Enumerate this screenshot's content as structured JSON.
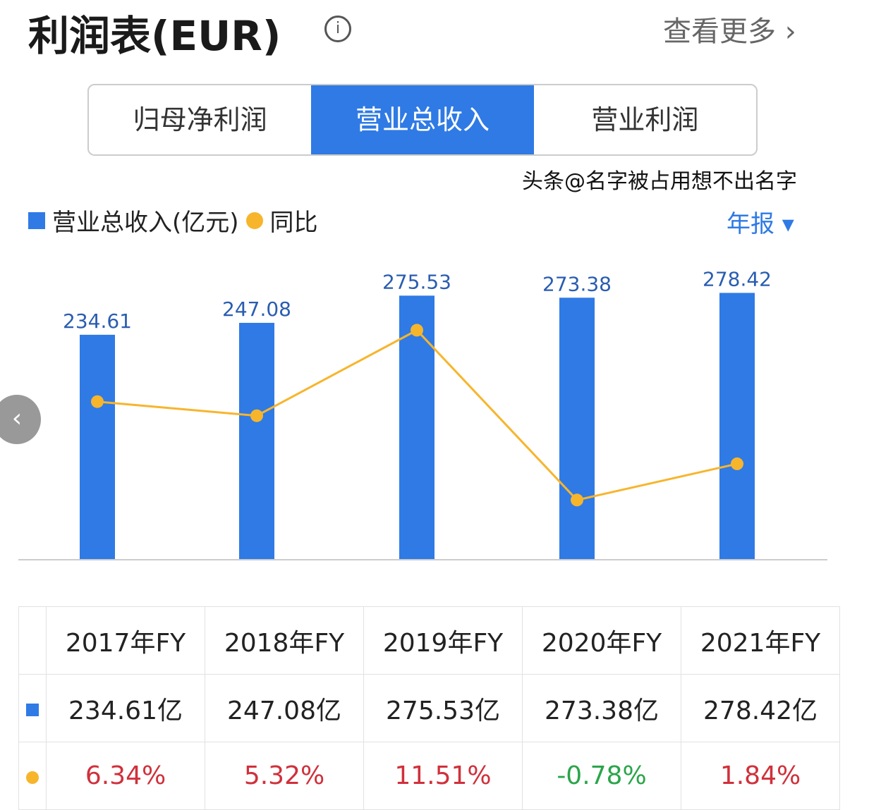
{
  "header": {
    "title": "利润表(EUR)",
    "more": "查看更多 ›"
  },
  "tabs": [
    {
      "label": "归母净利润",
      "active": false
    },
    {
      "label": "营业总收入",
      "active": true
    },
    {
      "label": "营业利润",
      "active": false
    }
  ],
  "legend": {
    "bar": "营业总收入(亿元)",
    "line": "同比"
  },
  "period": "年报 ▾",
  "colors": {
    "bar": "#2f7ae5",
    "line": "#f7b52c",
    "positive": "#d0303b",
    "negative": "#2aa54a"
  },
  "chart_data": {
    "type": "bar+line",
    "categories": [
      "2017年FY",
      "2018年FY",
      "2019年FY",
      "2020年FY",
      "2021年FY"
    ],
    "series": [
      {
        "name": "营业总收入(亿元)",
        "type": "bar",
        "values": [
          234.61,
          247.08,
          275.53,
          273.38,
          278.42
        ],
        "labels": [
          "234.61",
          "247.08",
          "275.53",
          "273.38",
          "278.42"
        ]
      },
      {
        "name": "同比",
        "type": "line",
        "values": [
          6.34,
          5.32,
          11.51,
          -0.78,
          1.84
        ]
      }
    ]
  },
  "table": {
    "rev": [
      "234.61亿",
      "247.08亿",
      "275.53亿",
      "273.38亿",
      "278.42亿"
    ],
    "yoy": [
      "6.34%",
      "5.32%",
      "11.51%",
      "-0.78%",
      "1.84%"
    ]
  },
  "watermark": "头条@名字被占用想不出名字"
}
